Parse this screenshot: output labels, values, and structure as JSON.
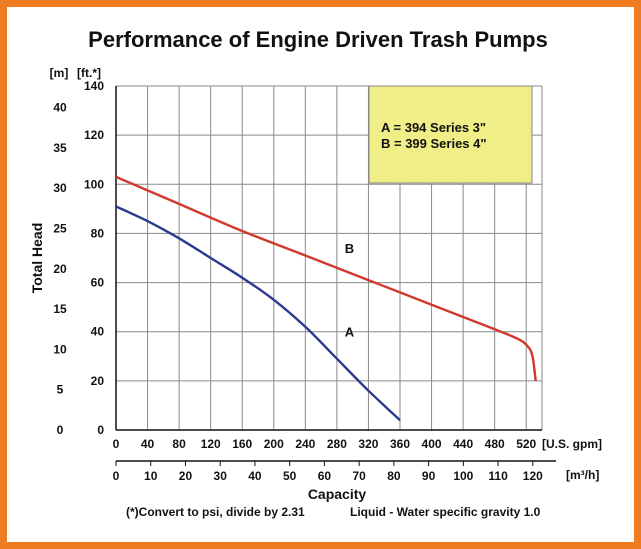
{
  "chart_data": {
    "type": "line",
    "title": "Performance of Engine Driven Trash Pumps",
    "ylabel": "Total Head",
    "xlabel": "Capacity",
    "x_unit": "[U.S. gpm]",
    "x2_unit": "[m³/h]",
    "y_unit": "[ft.*]",
    "y2_unit": "[m]",
    "xlim": [
      0,
      540
    ],
    "ylim": [
      0,
      140
    ],
    "x_ticks": [
      0,
      40,
      80,
      120,
      160,
      200,
      240,
      280,
      320,
      360,
      400,
      440,
      480,
      520
    ],
    "y_ticks": [
      0,
      20,
      40,
      60,
      80,
      100,
      120,
      140
    ],
    "x2_ticks": [
      0,
      10,
      20,
      30,
      40,
      50,
      60,
      70,
      80,
      90,
      100,
      110,
      120
    ],
    "y2_ticks": [
      0,
      5,
      10,
      15,
      20,
      25,
      30,
      35,
      40
    ],
    "grid": true,
    "legend_lines": [
      "A = 394 Series 3\"",
      "B = 399 Series 4\""
    ],
    "legend_position": "top-right",
    "footnote_left": "(*)Convert to psi, divide by 2.31",
    "footnote_right": "Liquid - Water specific gravity 1.0",
    "series": [
      {
        "name": "A",
        "color": "#2b3a8f",
        "x": [
          0,
          40,
          80,
          120,
          160,
          200,
          240,
          280,
          320,
          360
        ],
        "y": [
          91,
          85,
          78,
          70,
          62,
          53,
          42,
          29,
          16,
          4
        ]
      },
      {
        "name": "B",
        "color": "#d0392e",
        "x": [
          0,
          80,
          160,
          240,
          320,
          400,
          480,
          510,
          522,
          528,
          532
        ],
        "y": [
          103,
          92,
          81,
          71,
          61,
          51,
          41,
          37,
          34,
          30,
          20
        ]
      }
    ]
  },
  "colors": {
    "border": "#f07c22",
    "legend_fill": "#f0ee86",
    "grid": "#8a8a8a"
  }
}
